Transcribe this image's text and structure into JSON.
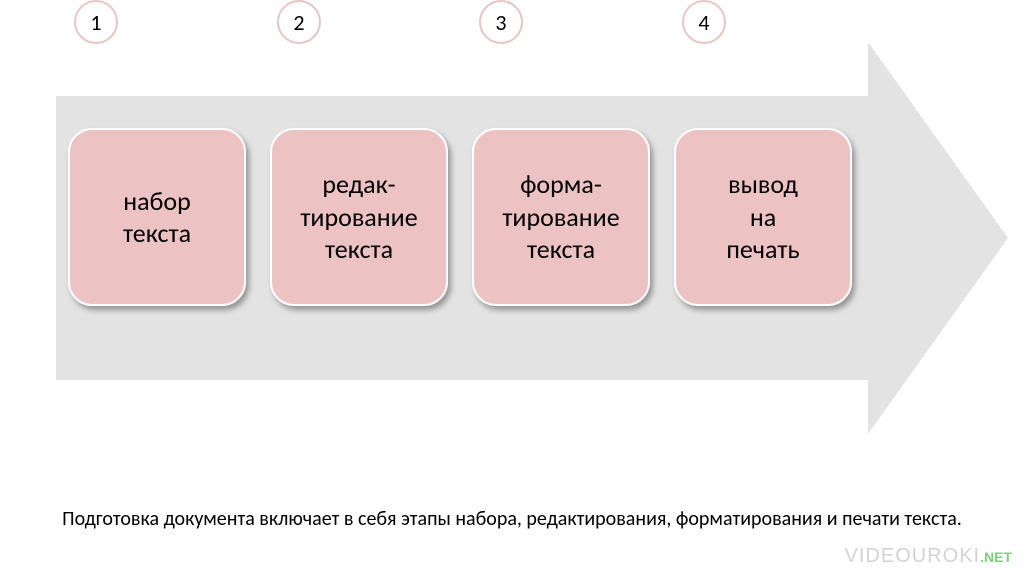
{
  "diagram": {
    "type": "flowchart",
    "direction": "horizontal-arrow",
    "background_color": "#ffffff",
    "arrow_body_color": "#e3e3e3",
    "arrow_width": 952,
    "arrow_body_height": 284,
    "arrow_head_width": 140,
    "badge": {
      "background": "#ffffff",
      "border_color": "#e6c5c5",
      "border_width": 2,
      "radius": 22,
      "fontsize": 22,
      "text_color": "#000000"
    },
    "step_box": {
      "background": "#edc2c2",
      "border_color": "#ffffff",
      "border_width": 2,
      "border_radius": 24,
      "width": 178,
      "height": 178,
      "fontsize": 26,
      "text_color": "#000000",
      "shadow": "3px 4px 6px rgba(0,0,0,0.35)"
    },
    "steps": [
      {
        "number": "1",
        "label": "набор\nтекста"
      },
      {
        "number": "2",
        "label": "редак-\nтирование\nтекста"
      },
      {
        "number": "3",
        "label": "форма-\nтирование\nтекста"
      },
      {
        "number": "4",
        "label": "вывод\nна\nпечать"
      }
    ]
  },
  "caption": {
    "text": "Подготовка документа включает в себя этапы набора, редактирования, форматирования\nи печати текста.",
    "fontsize": 20,
    "color": "#000000"
  },
  "watermark": {
    "brand": "VIDEOUROKI",
    "suffix": ".NET",
    "brand_color": "#d3d3d3",
    "suffix_color": "#7dd07d"
  }
}
